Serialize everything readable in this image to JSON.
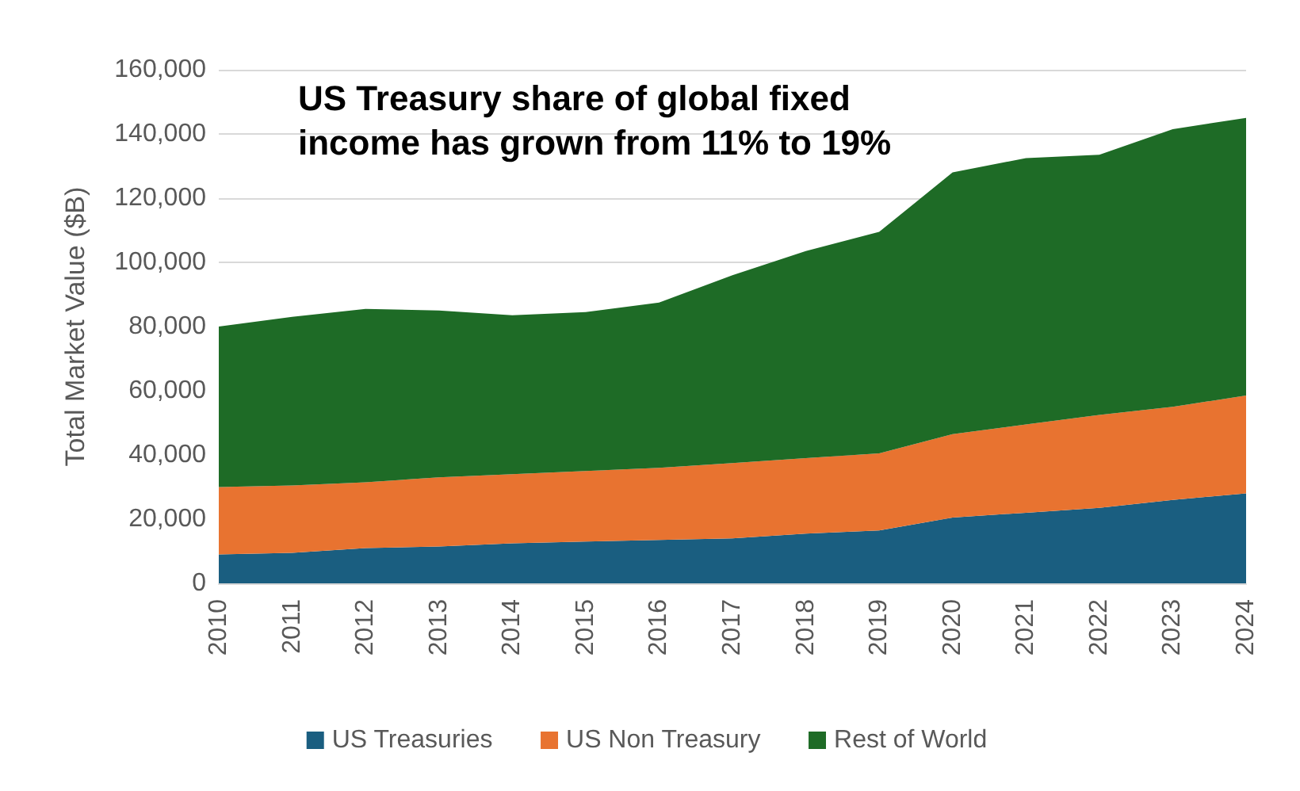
{
  "chart_data": {
    "type": "area",
    "stacked": true,
    "ylabel": "Total Market Value ($B)",
    "annotations": [
      "US Treasury share of global fixed income has grown from 11% to 19%"
    ],
    "categories": [
      "2010",
      "2011",
      "2012",
      "2013",
      "2014",
      "2015",
      "2016",
      "2017",
      "2018",
      "2019",
      "2020",
      "2021",
      "2022",
      "2023",
      "2024"
    ],
    "series": [
      {
        "name": "US Treasuries",
        "color": "#1a5e80",
        "values": [
          9000,
          9500,
          11000,
          11500,
          12500,
          13000,
          13500,
          14000,
          15500,
          16500,
          20500,
          22000,
          23500,
          26000,
          28000
        ]
      },
      {
        "name": "US Non Treasury",
        "color": "#e87330",
        "values": [
          21000,
          21000,
          20500,
          21500,
          21500,
          22000,
          22500,
          23500,
          23500,
          24000,
          26000,
          27500,
          29000,
          29000,
          30500
        ]
      },
      {
        "name": "Rest of World",
        "color": "#1e6b26",
        "values": [
          50000,
          52500,
          54000,
          52000,
          49500,
          49500,
          51500,
          58500,
          64500,
          69000,
          81500,
          83000,
          81000,
          86500,
          86500
        ]
      }
    ],
    "ylim": [
      0,
      160000
    ],
    "yticks": [
      0,
      {
        "value": 20000,
        "label": "20,000"
      },
      {
        "value": 40000,
        "label": "40,000"
      },
      {
        "value": 60000,
        "label": "60,000"
      },
      {
        "value": 80000,
        "label": "80,000"
      },
      {
        "value": 100000,
        "label": "100,000"
      },
      {
        "value": 120000,
        "label": "120,000"
      },
      {
        "value": 140000,
        "label": "140,000"
      },
      {
        "value": 160000,
        "label": "160,000"
      }
    ],
    "grid": "y",
    "legend": "bottom"
  }
}
